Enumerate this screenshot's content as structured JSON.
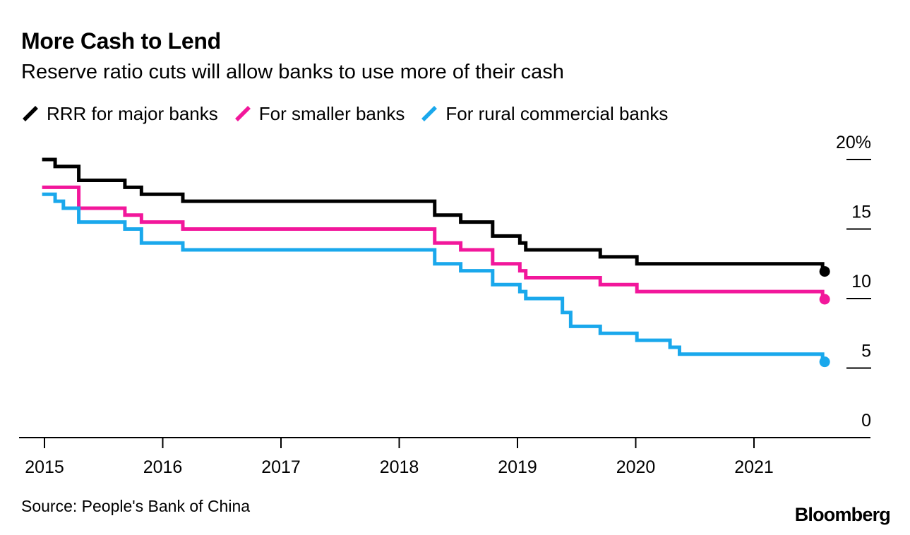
{
  "header": {
    "title": "More Cash to Lend",
    "subtitle": "Reserve ratio cuts will allow banks to use more of their cash"
  },
  "legend": [
    {
      "label": "RRR for major banks",
      "color": "#000000",
      "icon": "slash-line-icon"
    },
    {
      "label": "For smaller banks",
      "color": "#f2179b",
      "icon": "slash-line-icon"
    },
    {
      "label": "For rural commercial banks",
      "color": "#1aa8ec",
      "icon": "slash-line-icon"
    }
  ],
  "footer": {
    "source": "Source: People's Bank of China",
    "brand": "Bloomberg"
  },
  "chart_data": {
    "type": "line",
    "step": true,
    "title": "More Cash to Lend",
    "subtitle": "Reserve ratio cuts will allow banks to use more of their cash",
    "xlabel": "",
    "ylabel": "",
    "xlim": [
      2015.0,
      2021.9
    ],
    "ylim": [
      0,
      20
    ],
    "grid": false,
    "legend_position": "top-left",
    "x_ticks": [
      {
        "value": 2015,
        "label": "2015"
      },
      {
        "value": 2016,
        "label": "2016"
      },
      {
        "value": 2017,
        "label": "2017"
      },
      {
        "value": 2018,
        "label": "2018"
      },
      {
        "value": 2019,
        "label": "2019"
      },
      {
        "value": 2020,
        "label": "2020"
      },
      {
        "value": 2021,
        "label": "2021"
      }
    ],
    "y_ticks": [
      {
        "value": 20,
        "label": "20%"
      },
      {
        "value": 15,
        "label": "15"
      },
      {
        "value": 10,
        "label": "10"
      },
      {
        "value": 5,
        "label": "5"
      },
      {
        "value": 0,
        "label": "0"
      }
    ],
    "series": [
      {
        "name": "RRR for major banks",
        "color": "#000000",
        "points": [
          [
            2014.98,
            20.0
          ],
          [
            2015.09,
            19.5
          ],
          [
            2015.29,
            18.5
          ],
          [
            2015.68,
            18.0
          ],
          [
            2015.82,
            17.5
          ],
          [
            2016.17,
            17.0
          ],
          [
            2018.3,
            16.0
          ],
          [
            2018.52,
            15.5
          ],
          [
            2018.79,
            14.5
          ],
          [
            2019.02,
            14.0
          ],
          [
            2019.07,
            13.5
          ],
          [
            2019.7,
            13.0
          ],
          [
            2020.01,
            12.5
          ],
          [
            2021.55,
            12.5
          ],
          [
            2021.58,
            12.0
          ]
        ],
        "end_marker": true
      },
      {
        "name": "For smaller banks",
        "color": "#f2179b",
        "points": [
          [
            2014.98,
            18.0
          ],
          [
            2015.29,
            16.5
          ],
          [
            2015.68,
            16.0
          ],
          [
            2015.82,
            15.5
          ],
          [
            2016.17,
            15.0
          ],
          [
            2018.3,
            14.0
          ],
          [
            2018.52,
            13.5
          ],
          [
            2018.79,
            12.5
          ],
          [
            2019.02,
            12.0
          ],
          [
            2019.07,
            11.5
          ],
          [
            2019.7,
            11.0
          ],
          [
            2020.01,
            10.5
          ],
          [
            2021.55,
            10.5
          ],
          [
            2021.58,
            10.0
          ]
        ],
        "end_marker": true
      },
      {
        "name": "For rural commercial banks",
        "color": "#1aa8ec",
        "points": [
          [
            2014.98,
            17.5
          ],
          [
            2015.09,
            17.0
          ],
          [
            2015.16,
            16.5
          ],
          [
            2015.29,
            15.5
          ],
          [
            2015.68,
            15.0
          ],
          [
            2015.82,
            14.0
          ],
          [
            2016.17,
            13.5
          ],
          [
            2018.3,
            12.5
          ],
          [
            2018.52,
            12.0
          ],
          [
            2018.79,
            11.0
          ],
          [
            2019.02,
            10.5
          ],
          [
            2019.07,
            10.0
          ],
          [
            2019.38,
            9.0
          ],
          [
            2019.45,
            8.0
          ],
          [
            2019.7,
            7.5
          ],
          [
            2020.01,
            7.0
          ],
          [
            2020.29,
            6.5
          ],
          [
            2020.37,
            6.0
          ],
          [
            2021.55,
            6.0
          ],
          [
            2021.58,
            5.5
          ]
        ],
        "end_marker": true
      }
    ]
  }
}
